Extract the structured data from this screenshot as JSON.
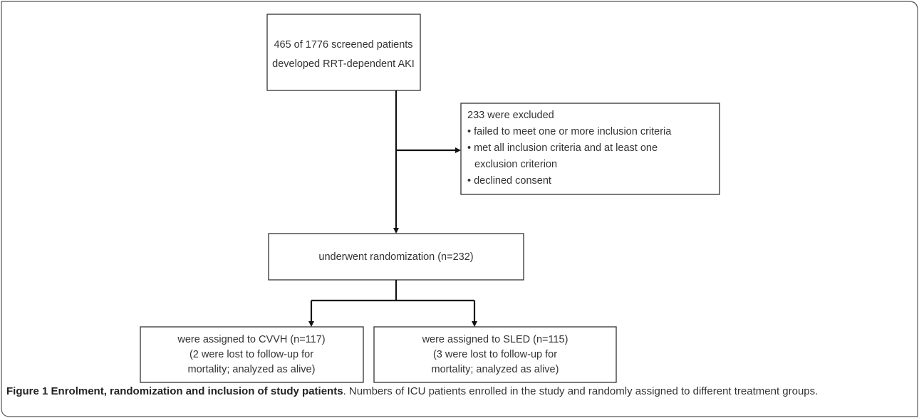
{
  "nodes": [
    {
      "lines": [
        "465 of 1776 screened patients",
        "developed  RRT-dependent AKI"
      ]
    },
    {
      "lines": [
        "233 were excluded",
        "• failed to meet one or more inclusion criteria",
        "• met all inclusion criteria and at least one",
        "exclusion criterion",
        "• declined consent"
      ]
    },
    {
      "lines": [
        "underwent randomization (n=232)"
      ]
    },
    {
      "lines": [
        "were assigned to CVVH (n=117)",
        "(2 were lost to follow-up for",
        "mortality; analyzed as alive)"
      ]
    },
    {
      "lines": [
        "were assigned to SLED (n=115)",
        "(3 were lost to follow-up for",
        "mortality; analyzed as alive)"
      ]
    }
  ],
  "caption": {
    "label": "Figure 1",
    "title": "Enrolment, randomization and inclusion of study patients",
    "text": ". Numbers of ICU patients enrolled in the study and randomly assigned to different treatment groups."
  }
}
